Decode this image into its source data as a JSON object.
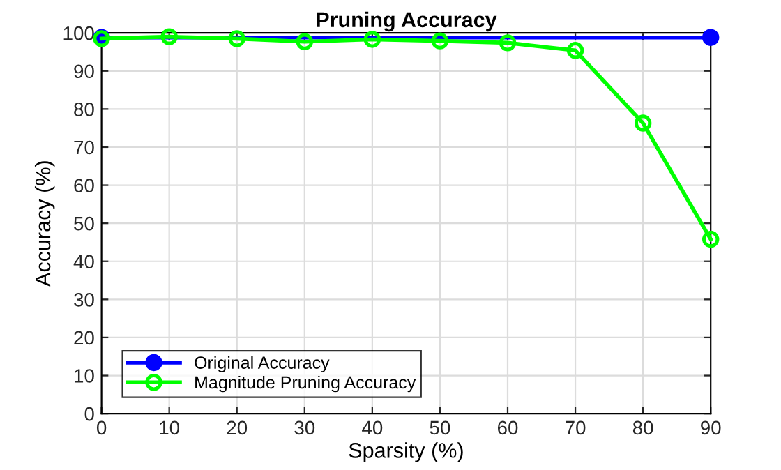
{
  "chart_data": {
    "type": "line",
    "title": "Pruning Accuracy",
    "xlabel": "Sparsity (%)",
    "ylabel": "Accuracy (%)",
    "series": [
      {
        "name": "Original Accuracy",
        "color": "#0000ff",
        "x": [
          0,
          90
        ],
        "values": [
          98.8,
          98.8
        ],
        "marker": "circle"
      },
      {
        "name": "Magnitude Pruning Accuracy",
        "color": "#00ff00",
        "x": [
          0,
          10,
          20,
          30,
          40,
          50,
          60,
          70,
          80,
          90
        ],
        "values": [
          98.5,
          99,
          98.5,
          97.7,
          98.3,
          97.9,
          97.4,
          95.4,
          76.3,
          45.8
        ],
        "marker": "circle"
      }
    ],
    "xlim": [
      0,
      90
    ],
    "xticks": [
      0,
      10,
      20,
      30,
      40,
      50,
      60,
      70,
      80,
      90
    ],
    "ylim": [
      0,
      100
    ],
    "yticks": [
      0,
      10,
      20,
      30,
      40,
      50,
      60,
      70,
      80,
      90,
      100
    ],
    "grid": true,
    "legend": "bottom left",
    "line_style": "solid"
  }
}
